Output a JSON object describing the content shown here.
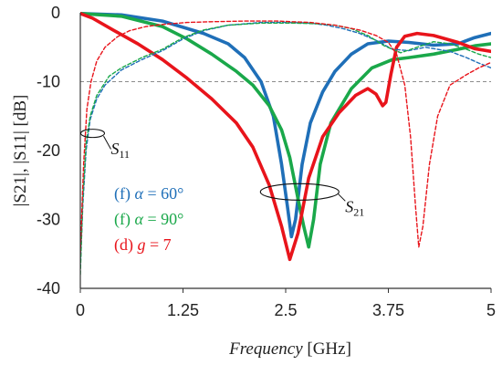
{
  "chart_data": {
    "type": "line",
    "xlabel_italic": "Frequency",
    "xlabel_unit": "[GHz]",
    "ylabel": "|S21|, |S11| [dB]",
    "xlim": [
      0,
      5
    ],
    "ylim": [
      -40,
      0
    ],
    "x_ticks": [
      0,
      1.25,
      2.5,
      3.75,
      5
    ],
    "x_tick_labels": [
      "0",
      "1.25",
      "2.5",
      "3.75",
      "5"
    ],
    "y_ticks": [
      0,
      -10,
      -20,
      -30,
      -40
    ],
    "y_tick_labels": [
      "0",
      "-10",
      "-20",
      "-30",
      "-40"
    ],
    "reference_line": {
      "y": -10,
      "color": "#8c8c8c",
      "style": "dashed"
    },
    "colors": {
      "blue": "#1f6fb8",
      "green": "#1aa84a",
      "red": "#e8141b"
    },
    "legend": [
      {
        "prefix": "(f) ",
        "var": "α",
        "rest": " = 60°",
        "color": "#1f6fb8"
      },
      {
        "prefix": "(f) ",
        "var": "α",
        "rest": " = 90°",
        "color": "#1aa84a"
      },
      {
        "prefix": "(d) ",
        "var": "g",
        "rest": " = 7",
        "color": "#e8141b"
      }
    ],
    "annotations": [
      {
        "base": "S",
        "sub": "11"
      },
      {
        "base": "S",
        "sub": "21"
      }
    ],
    "series": [
      {
        "kind": "S21",
        "color": "#1f6fb8",
        "style": "solid",
        "points": [
          [
            0,
            -0.1
          ],
          [
            0.5,
            -0.3
          ],
          [
            1.0,
            -1.2
          ],
          [
            1.5,
            -3.0
          ],
          [
            1.8,
            -4.5
          ],
          [
            2.0,
            -6.5
          ],
          [
            2.2,
            -10.0
          ],
          [
            2.35,
            -15.0
          ],
          [
            2.45,
            -22.0
          ],
          [
            2.52,
            -28.0
          ],
          [
            2.57,
            -32.5
          ],
          [
            2.62,
            -30.0
          ],
          [
            2.7,
            -22.0
          ],
          [
            2.8,
            -16.0
          ],
          [
            2.95,
            -11.5
          ],
          [
            3.1,
            -8.5
          ],
          [
            3.3,
            -6.0
          ],
          [
            3.5,
            -4.5
          ],
          [
            3.75,
            -4.1
          ],
          [
            4.0,
            -4.3
          ],
          [
            4.3,
            -4.7
          ],
          [
            4.6,
            -4.5
          ],
          [
            4.8,
            -3.6
          ],
          [
            5.0,
            -3.0
          ]
        ]
      },
      {
        "kind": "S21",
        "color": "#1aa84a",
        "style": "solid",
        "points": [
          [
            0,
            -0.1
          ],
          [
            0.5,
            -0.5
          ],
          [
            1.0,
            -2.0
          ],
          [
            1.3,
            -3.8
          ],
          [
            1.6,
            -6.0
          ],
          [
            1.9,
            -8.5
          ],
          [
            2.1,
            -10.5
          ],
          [
            2.3,
            -13.5
          ],
          [
            2.45,
            -17.0
          ],
          [
            2.55,
            -21.0
          ],
          [
            2.65,
            -27.0
          ],
          [
            2.72,
            -31.0
          ],
          [
            2.78,
            -34.0
          ],
          [
            2.84,
            -30.0
          ],
          [
            2.92,
            -22.0
          ],
          [
            3.05,
            -16.0
          ],
          [
            3.3,
            -11.0
          ],
          [
            3.55,
            -8.0
          ],
          [
            3.8,
            -6.8
          ],
          [
            4.0,
            -6.5
          ],
          [
            4.3,
            -6.0
          ],
          [
            4.6,
            -5.3
          ],
          [
            4.8,
            -4.8
          ],
          [
            5.0,
            -4.5
          ]
        ]
      },
      {
        "kind": "S21",
        "color": "#e8141b",
        "style": "solid",
        "points": [
          [
            0,
            -0.1
          ],
          [
            0.15,
            -0.8
          ],
          [
            0.4,
            -2.5
          ],
          [
            0.7,
            -4.5
          ],
          [
            1.0,
            -6.8
          ],
          [
            1.3,
            -9.5
          ],
          [
            1.6,
            -12.5
          ],
          [
            1.9,
            -16.0
          ],
          [
            2.1,
            -19.5
          ],
          [
            2.3,
            -25.0
          ],
          [
            2.45,
            -31.0
          ],
          [
            2.55,
            -35.8
          ],
          [
            2.65,
            -32.0
          ],
          [
            2.78,
            -24.0
          ],
          [
            2.95,
            -18.0
          ],
          [
            3.15,
            -14.5
          ],
          [
            3.35,
            -12.0
          ],
          [
            3.5,
            -11.0
          ],
          [
            3.6,
            -11.8
          ],
          [
            3.68,
            -13.5
          ],
          [
            3.72,
            -13.0
          ],
          [
            3.78,
            -9.0
          ],
          [
            3.85,
            -5.0
          ],
          [
            3.95,
            -3.4
          ],
          [
            4.1,
            -3.0
          ],
          [
            4.3,
            -3.3
          ],
          [
            4.6,
            -4.3
          ],
          [
            4.8,
            -5.2
          ],
          [
            5.0,
            -5.6
          ]
        ]
      },
      {
        "kind": "S11",
        "color": "#1f6fb8",
        "style": "dashed",
        "points": [
          [
            0,
            -37.0
          ],
          [
            0.03,
            -28.0
          ],
          [
            0.07,
            -20.0
          ],
          [
            0.12,
            -15.5
          ],
          [
            0.2,
            -12.5
          ],
          [
            0.3,
            -10.5
          ],
          [
            0.5,
            -8.3
          ],
          [
            0.75,
            -6.8
          ],
          [
            1.0,
            -5.5
          ],
          [
            1.25,
            -3.8
          ],
          [
            1.5,
            -2.6
          ],
          [
            1.8,
            -1.8
          ],
          [
            2.2,
            -1.4
          ],
          [
            2.5,
            -1.4
          ],
          [
            2.8,
            -1.5
          ],
          [
            3.0,
            -1.8
          ],
          [
            3.2,
            -2.3
          ],
          [
            3.4,
            -3.0
          ],
          [
            3.6,
            -4.0
          ],
          [
            3.8,
            -5.3
          ],
          [
            4.0,
            -5.5
          ],
          [
            4.2,
            -5.0
          ],
          [
            4.5,
            -5.6
          ],
          [
            4.7,
            -6.5
          ],
          [
            4.85,
            -7.3
          ],
          [
            5.0,
            -8.0
          ]
        ]
      },
      {
        "kind": "S11",
        "color": "#1aa84a",
        "style": "dashed",
        "points": [
          [
            0,
            -38.0
          ],
          [
            0.03,
            -27.0
          ],
          [
            0.07,
            -19.0
          ],
          [
            0.12,
            -15.0
          ],
          [
            0.2,
            -12.0
          ],
          [
            0.35,
            -9.2
          ],
          [
            0.5,
            -8.0
          ],
          [
            0.75,
            -6.5
          ],
          [
            1.0,
            -5.3
          ],
          [
            1.25,
            -3.6
          ],
          [
            1.5,
            -2.5
          ],
          [
            1.8,
            -1.8
          ],
          [
            2.2,
            -1.5
          ],
          [
            2.6,
            -1.5
          ],
          [
            2.9,
            -1.6
          ],
          [
            3.1,
            -1.8
          ],
          [
            3.3,
            -2.3
          ],
          [
            3.5,
            -3.3
          ],
          [
            3.7,
            -4.8
          ],
          [
            3.9,
            -5.8
          ],
          [
            4.1,
            -5.0
          ],
          [
            4.3,
            -4.2
          ],
          [
            4.5,
            -4.5
          ],
          [
            4.7,
            -5.3
          ],
          [
            4.85,
            -6.0
          ],
          [
            5.0,
            -6.5
          ]
        ]
      },
      {
        "kind": "S11",
        "color": "#e8141b",
        "style": "dashed",
        "points": [
          [
            0,
            -35.0
          ],
          [
            0.04,
            -22.0
          ],
          [
            0.08,
            -14.0
          ],
          [
            0.13,
            -10.0
          ],
          [
            0.2,
            -7.0
          ],
          [
            0.3,
            -5.0
          ],
          [
            0.45,
            -3.5
          ],
          [
            0.6,
            -2.6
          ],
          [
            0.8,
            -2.0
          ],
          [
            1.0,
            -1.7
          ],
          [
            1.3,
            -1.4
          ],
          [
            1.6,
            -1.3
          ],
          [
            2.0,
            -1.2
          ],
          [
            2.4,
            -1.2
          ],
          [
            2.8,
            -1.4
          ],
          [
            3.1,
            -1.8
          ],
          [
            3.4,
            -2.5
          ],
          [
            3.6,
            -3.3
          ],
          [
            3.75,
            -4.3
          ],
          [
            3.85,
            -6.0
          ],
          [
            3.95,
            -10.5
          ],
          [
            4.02,
            -18.0
          ],
          [
            4.08,
            -28.0
          ],
          [
            4.12,
            -34.0
          ],
          [
            4.17,
            -31.0
          ],
          [
            4.25,
            -22.0
          ],
          [
            4.35,
            -15.0
          ],
          [
            4.5,
            -10.5
          ],
          [
            4.7,
            -9.0
          ],
          [
            4.85,
            -8.0
          ],
          [
            5.0,
            -7.2
          ]
        ]
      }
    ]
  }
}
